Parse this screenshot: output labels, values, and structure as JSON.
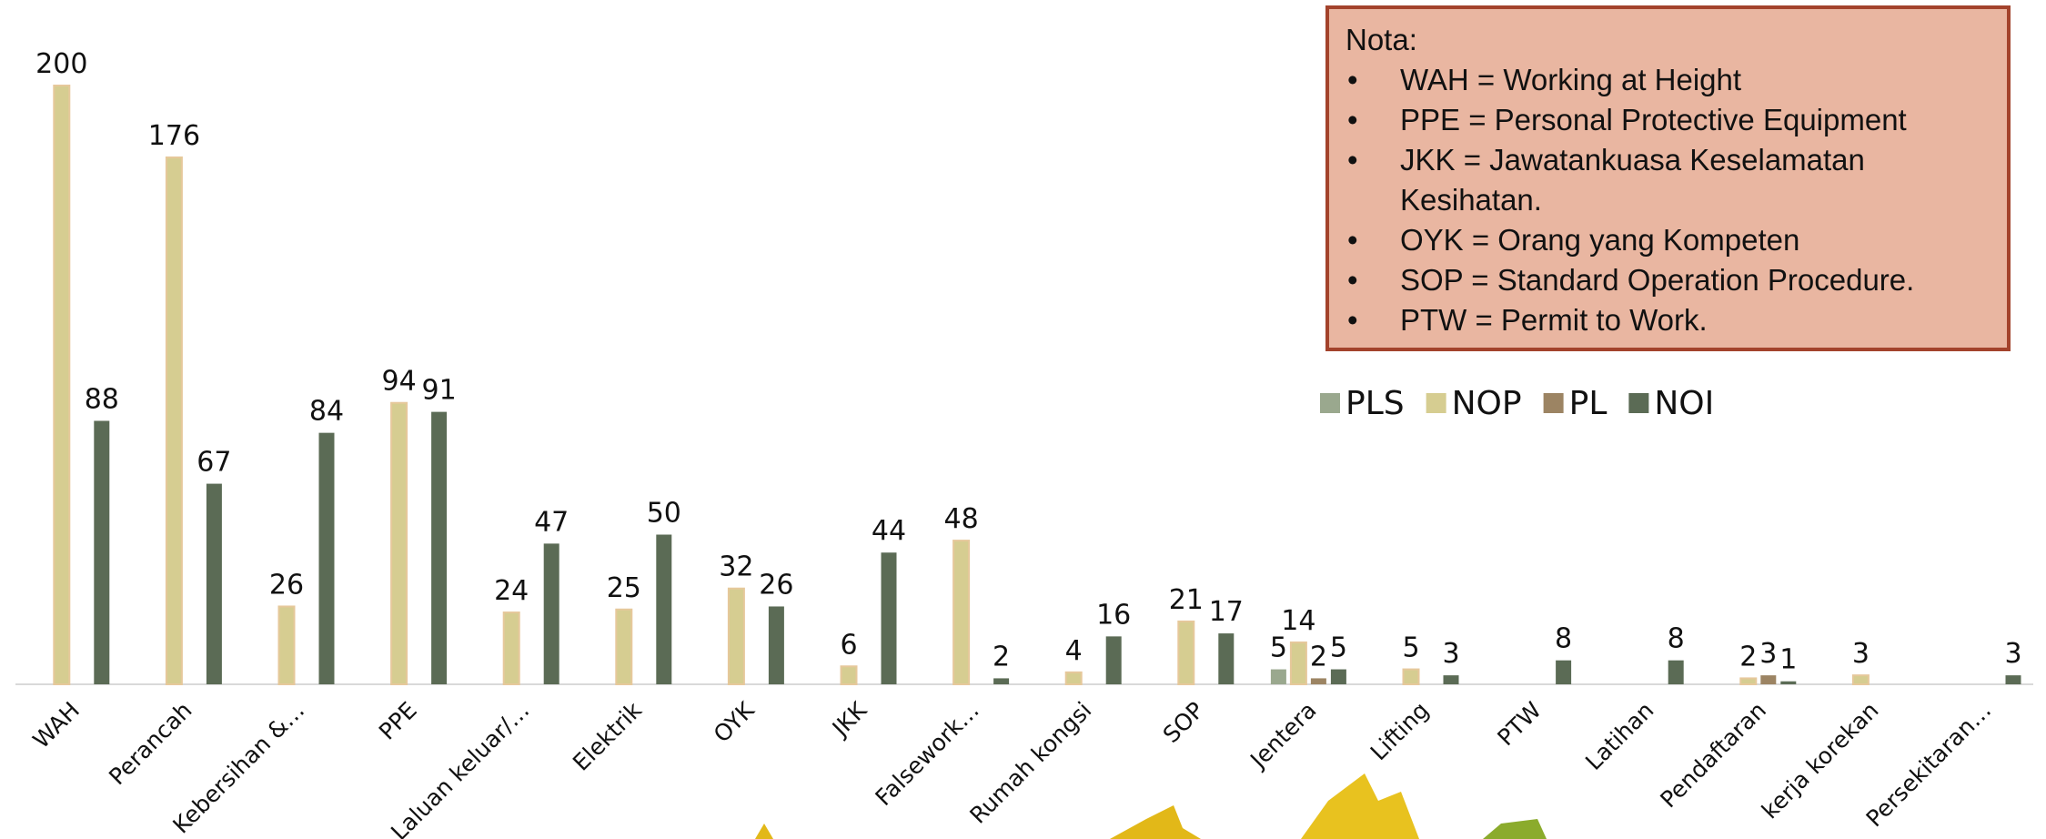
{
  "chart_data": {
    "type": "bar",
    "categories": [
      "WAH",
      "Perancah",
      "Kebersihan &…",
      "PPE",
      "Laluan keluar/…",
      "Elektrik",
      "OYK",
      "JKK",
      "Falsework…",
      "Rumah kongsi",
      "SOP",
      "Jentera",
      "Lifting",
      "PTW",
      "Latihan",
      "Pendaftaran",
      "kerja korekan",
      "Persekitaran…"
    ],
    "series": [
      {
        "name": "PLS",
        "color": "#9aa88e",
        "values": [
          null,
          null,
          null,
          null,
          null,
          null,
          null,
          null,
          null,
          null,
          null,
          5,
          null,
          null,
          null,
          null,
          null,
          null
        ]
      },
      {
        "name": "NOP",
        "color": "#d6cd91",
        "values": [
          200,
          176,
          26,
          94,
          24,
          25,
          32,
          6,
          48,
          4,
          21,
          14,
          5,
          null,
          null,
          2,
          3,
          null
        ]
      },
      {
        "name": "PL",
        "color": "#9c8463",
        "values": [
          null,
          null,
          null,
          null,
          null,
          null,
          null,
          null,
          null,
          null,
          null,
          2,
          null,
          null,
          null,
          3,
          null,
          null
        ]
      },
      {
        "name": "NOI",
        "color": "#5b6b55",
        "values": [
          88,
          67,
          84,
          91,
          47,
          50,
          26,
          44,
          2,
          16,
          17,
          5,
          3,
          8,
          8,
          1,
          null,
          3
        ]
      }
    ],
    "legend": "top-right"
  },
  "note": {
    "title": "Nota:",
    "items": [
      "WAH = Working at Height",
      "PPE = Personal Protective Equipment",
      "JKK = Jawatankuasa Keselamatan Kesihatan.",
      "OYK = Orang yang Kompeten",
      "SOP = Standard Operation Procedure.",
      "PTW = Permit to Work."
    ]
  }
}
